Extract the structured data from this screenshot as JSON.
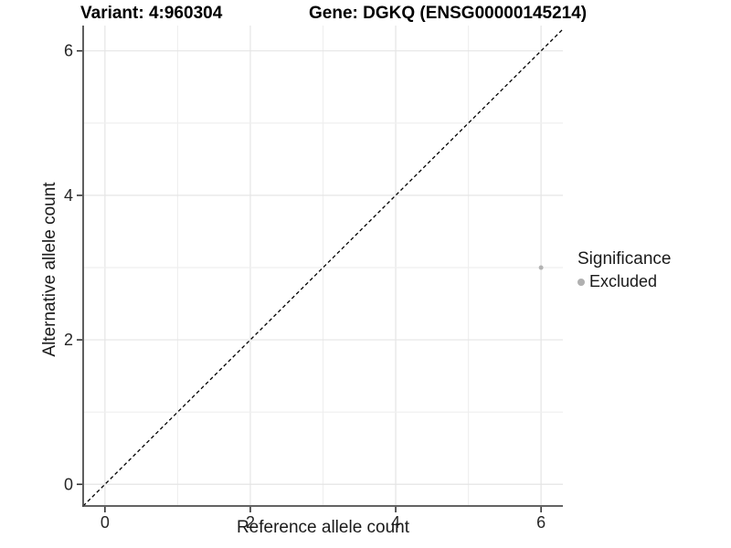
{
  "chart_data": {
    "type": "scatter",
    "titles": {
      "variant": "Variant: 4:960304",
      "gene": "Gene: DGKQ (ENSG00000145214)"
    },
    "xlabel": "Reference allele count",
    "ylabel": "Alternative allele count",
    "xlim": [
      -0.3,
      6.3
    ],
    "ylim": [
      -0.3,
      6.35
    ],
    "xticks": [
      0,
      2,
      4,
      6
    ],
    "yticks": [
      0,
      2,
      4,
      6
    ],
    "grid": {
      "show": true,
      "interval": 1,
      "major_every": 2,
      "major_color": "#e5e5e5",
      "minor_color": "#efefef"
    },
    "identity_line": {
      "type": "abline",
      "slope": 1,
      "intercept": 0,
      "style": "dashed",
      "color": "#000000"
    },
    "series": [
      {
        "name": "Excluded",
        "color": "#b3b3b3",
        "point_radius": 2.5,
        "points": [
          [
            6,
            3
          ]
        ]
      }
    ],
    "legend": {
      "title": "Significance",
      "position": "right",
      "entries": [
        {
          "label": "Excluded",
          "color": "#b0b0b0"
        }
      ]
    },
    "axis_color": "#4d4d4d",
    "tick_color": "#333333",
    "tick_label_color": "#1a1a1a"
  }
}
